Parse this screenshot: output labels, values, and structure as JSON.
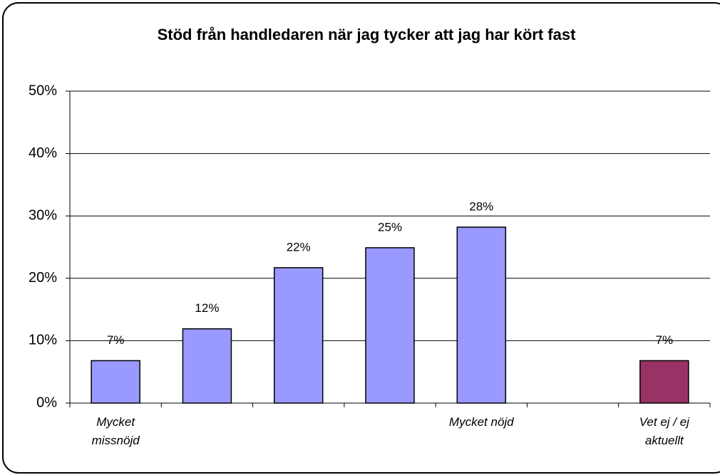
{
  "chart_data": {
    "type": "bar",
    "title": "Stöd från handledaren när jag tycker att jag har kört fast",
    "categories": [
      "Mycket missnöjd",
      null,
      null,
      null,
      "Mycket nöjd",
      null,
      "Vet ej / ej aktuellt"
    ],
    "values": [
      6.8,
      11.9,
      21.7,
      24.9,
      28.2,
      null,
      6.8
    ],
    "value_labels": [
      "7%",
      "12%",
      "22%",
      "25%",
      "28%",
      null,
      "7%"
    ],
    "colors": [
      "#9999ff",
      "#9999ff",
      "#9999ff",
      "#9999ff",
      "#9999ff",
      null,
      "#993366"
    ],
    "ylim": [
      0,
      50
    ],
    "yticks": [
      {
        "value": 0,
        "label": "0%"
      },
      {
        "value": 10,
        "label": "10%"
      },
      {
        "value": 20,
        "label": "20%"
      },
      {
        "value": 30,
        "label": "30%"
      },
      {
        "value": 40,
        "label": "40%"
      },
      {
        "value": 50,
        "label": "50%"
      }
    ],
    "grid": true
  }
}
